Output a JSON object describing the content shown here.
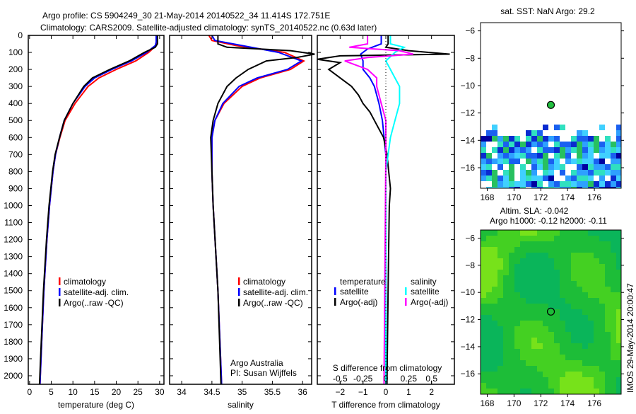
{
  "title_line1": "Argo profile: CS 5904249_30 21-May-2014 20140522_34 11.414S 172.751E",
  "title_line2": "Climatology: CARS2009. Satellite-adjusted climatology: synTS_20140522.nc (0.63d later)",
  "chart_data": [
    {
      "type": "line",
      "id": "temperature",
      "xlabel": "temperature (deg C)",
      "xlim": [
        -0.3,
        31
      ],
      "ylim": [
        2050,
        0
      ],
      "xticks": [
        0,
        5,
        10,
        15,
        20,
        25,
        30
      ],
      "yticks": [
        0,
        100,
        200,
        300,
        400,
        500,
        600,
        700,
        800,
        900,
        1000,
        1100,
        1200,
        1300,
        1400,
        1500,
        1600,
        1700,
        1800,
        1900,
        2000
      ],
      "legend": [
        "climatology",
        "satellite-adj. clim.",
        "Argo(..raw -QC)"
      ],
      "legend_placement": "lower-center",
      "series": [
        {
          "name": "climatology",
          "color": "#ff0000",
          "points": [
            [
              0,
              29.4
            ],
            [
              40,
              29.4
            ],
            [
              60,
              29.2
            ],
            [
              100,
              27.5
            ],
            [
              150,
              24.5
            ],
            [
              200,
              20
            ],
            [
              250,
              16
            ],
            [
              300,
              13.5
            ],
            [
              400,
              10.5
            ],
            [
              500,
              8.2
            ],
            [
              600,
              7
            ],
            [
              700,
              6
            ],
            [
              800,
              5.4
            ],
            [
              1000,
              4.6
            ],
            [
              1200,
              4
            ],
            [
              1500,
              3.3
            ],
            [
              1800,
              2.8
            ],
            [
              2050,
              2.4
            ]
          ]
        },
        {
          "name": "satellite-adj. clim.",
          "color": "#0000ff",
          "points": [
            [
              0,
              29.2
            ],
            [
              40,
              29.2
            ],
            [
              60,
              29
            ],
            [
              100,
              27
            ],
            [
              150,
              23.5
            ],
            [
              200,
              19
            ],
            [
              250,
              15
            ],
            [
              300,
              12.8
            ],
            [
              400,
              10
            ],
            [
              500,
              8
            ],
            [
              600,
              6.9
            ],
            [
              700,
              6
            ],
            [
              800,
              5.4
            ],
            [
              1000,
              4.6
            ],
            [
              1200,
              4
            ],
            [
              1500,
              3.3
            ],
            [
              1800,
              2.8
            ],
            [
              2050,
              2.4
            ]
          ]
        },
        {
          "name": "Argo(..raw -QC)",
          "color": "#000000",
          "points": [
            [
              0,
              29.5
            ],
            [
              50,
              29.5
            ],
            [
              70,
              29
            ],
            [
              100,
              26.5
            ],
            [
              150,
              23
            ],
            [
              200,
              18.5
            ],
            [
              250,
              14.5
            ],
            [
              300,
              12.5
            ],
            [
              400,
              10
            ],
            [
              500,
              8
            ],
            [
              600,
              6.9
            ],
            [
              700,
              5.9
            ],
            [
              800,
              5.3
            ],
            [
              1000,
              4.5
            ],
            [
              1200,
              3.9
            ],
            [
              1500,
              3.2
            ],
            [
              1800,
              2.7
            ],
            [
              2050,
              2.3
            ]
          ]
        }
      ]
    },
    {
      "type": "line",
      "id": "salinity",
      "xlabel": "salinity",
      "xlim": [
        33.8,
        36.15
      ],
      "ylim": [
        2050,
        0
      ],
      "xticks": [
        34,
        34.5,
        35,
        35.5,
        36
      ],
      "legend": [
        "climatology",
        "satellite-adj. clim.",
        "Argo(..raw -QC)"
      ],
      "legend_placement": "lower-right",
      "annotation": [
        "Argo Australia",
        "PI: Susan Wijffels"
      ],
      "series": [
        {
          "name": "climatology",
          "color": "#ff0000",
          "points": [
            [
              0,
              34.45
            ],
            [
              30,
              34.5
            ],
            [
              60,
              34.9
            ],
            [
              100,
              35.7
            ],
            [
              150,
              36.02
            ],
            [
              200,
              35.8
            ],
            [
              250,
              35.3
            ],
            [
              300,
              35
            ],
            [
              400,
              34.7
            ],
            [
              500,
              34.55
            ],
            [
              600,
              34.5
            ],
            [
              800,
              34.5
            ],
            [
              1000,
              34.52
            ],
            [
              1500,
              34.6
            ],
            [
              2050,
              34.66
            ]
          ]
        },
        {
          "name": "satellite-adj. clim.",
          "color": "#0000ff",
          "points": [
            [
              0,
              34.5
            ],
            [
              30,
              34.55
            ],
            [
              60,
              35
            ],
            [
              100,
              35.6
            ],
            [
              150,
              35.98
            ],
            [
              200,
              35.75
            ],
            [
              250,
              35.25
            ],
            [
              300,
              34.95
            ],
            [
              400,
              34.68
            ],
            [
              500,
              34.55
            ],
            [
              600,
              34.5
            ],
            [
              800,
              34.5
            ],
            [
              1000,
              34.52
            ],
            [
              1500,
              34.6
            ],
            [
              2050,
              34.66
            ]
          ]
        },
        {
          "name": "Argo(..raw -QC)",
          "color": "#000000",
          "points": [
            [
              0,
              34.6
            ],
            [
              50,
              34.6
            ],
            [
              70,
              34.75
            ],
            [
              90,
              35.8
            ],
            [
              110,
              36.2
            ],
            [
              130,
              35.9
            ],
            [
              150,
              35.4
            ],
            [
              200,
              35.1
            ],
            [
              250,
              34.9
            ],
            [
              300,
              34.75
            ],
            [
              400,
              34.6
            ],
            [
              500,
              34.52
            ],
            [
              600,
              34.48
            ],
            [
              800,
              34.5
            ],
            [
              1000,
              34.52
            ],
            [
              1500,
              34.6
            ],
            [
              2050,
              34.65
            ]
          ]
        }
      ]
    },
    {
      "type": "line",
      "id": "difference",
      "xlabel": "T difference from climatology",
      "xlabel2": "S difference from climatology",
      "xlim": [
        -3,
        3
      ],
      "x2lim": [
        -0.75,
        0.75
      ],
      "xticks": [
        -2,
        -1,
        0,
        1,
        2
      ],
      "x2ticks": [
        -0.5,
        -0.25,
        0,
        0.25,
        0.5
      ],
      "x2ticklabels": [
        "-0.5",
        "-0.25",
        "0",
        "0.25",
        "0.5"
      ],
      "ylim": [
        2050,
        0
      ],
      "legend_temperature": {
        "title": "temperature",
        "items": [
          "satellite",
          "Argo(-adj)"
        ]
      },
      "legend_salinity": {
        "title": "salinity",
        "items": [
          "satellite",
          "Argo(-adj)"
        ]
      },
      "series": [
        {
          "name": "temperature satellite",
          "axis": "T",
          "color": "#0000ff",
          "points": [
            [
              0,
              -0.2
            ],
            [
              50,
              -0.2
            ],
            [
              80,
              -0.8
            ],
            [
              110,
              -1.1
            ],
            [
              150,
              -1
            ],
            [
              200,
              -1
            ],
            [
              250,
              -0.7
            ],
            [
              300,
              -0.5
            ],
            [
              400,
              -0.3
            ],
            [
              500,
              -0.15
            ],
            [
              700,
              0
            ],
            [
              2050,
              0
            ]
          ]
        },
        {
          "name": "temperature Argo(-adj)",
          "axis": "T",
          "color": "#000000",
          "points": [
            [
              0,
              0.1
            ],
            [
              50,
              0.1
            ],
            [
              70,
              0
            ],
            [
              90,
              1
            ],
            [
              110,
              2.8
            ],
            [
              120,
              -2
            ],
            [
              140,
              -3
            ],
            [
              160,
              -2
            ],
            [
              200,
              -2.5
            ],
            [
              250,
              -2
            ],
            [
              300,
              -1.5
            ],
            [
              350,
              -1.2
            ],
            [
              400,
              -1
            ],
            [
              450,
              -0.7
            ],
            [
              500,
              -0.5
            ],
            [
              550,
              -0.3
            ],
            [
              600,
              -0.1
            ],
            [
              700,
              0.05
            ],
            [
              900,
              0.2
            ],
            [
              1000,
              0.15
            ],
            [
              1500,
              0.1
            ],
            [
              2050,
              0.05
            ]
          ]
        },
        {
          "name": "salinity satellite",
          "axis": "S",
          "color": "#00ffff",
          "points": [
            [
              0,
              0.05
            ],
            [
              50,
              0.05
            ],
            [
              70,
              0.2
            ],
            [
              100,
              0.1
            ],
            [
              150,
              0
            ],
            [
              200,
              0.05
            ],
            [
              250,
              0.1
            ],
            [
              300,
              0.15
            ],
            [
              400,
              0.15
            ],
            [
              500,
              0.1
            ],
            [
              600,
              0.05
            ],
            [
              800,
              0
            ],
            [
              2050,
              0
            ]
          ]
        },
        {
          "name": "salinity Argo(-adj)",
          "axis": "S",
          "color": "#ff00ff",
          "points": [
            [
              0,
              -0.2
            ],
            [
              50,
              -0.2
            ],
            [
              70,
              -0.4
            ],
            [
              90,
              0.15
            ],
            [
              110,
              0.3
            ],
            [
              130,
              -0.2
            ],
            [
              150,
              -0.45
            ],
            [
              200,
              -0.2
            ],
            [
              250,
              -0.1
            ],
            [
              300,
              -0.1
            ],
            [
              400,
              -0.05
            ],
            [
              500,
              0
            ],
            [
              700,
              0
            ],
            [
              2050,
              -0.02
            ]
          ]
        }
      ]
    },
    {
      "type": "heatmap",
      "id": "sst-map",
      "title": "sat. SST: NaN Argo: 29.2",
      "xlim": [
        167.5,
        178
      ],
      "ylim": [
        -17.5,
        -5.4
      ],
      "xticks": [
        168,
        170,
        172,
        174,
        176
      ],
      "yticks": [
        -6,
        -8,
        -10,
        -12,
        -14,
        -16
      ],
      "argo_position": [
        172.751,
        -11.414
      ]
    },
    {
      "type": "heatmap",
      "id": "sla-map",
      "title_line1": "Altim. SLA: -0.042",
      "title_line2": "Argo h1000: -0.12 h2000: -0.11",
      "xlim": [
        167.5,
        178
      ],
      "ylim": [
        -17.5,
        -5.4
      ],
      "xticks": [
        168,
        170,
        172,
        174,
        176
      ],
      "yticks": [
        -6,
        -8,
        -10,
        -12,
        -14,
        -16
      ],
      "argo_position": [
        172.751,
        -11.414
      ],
      "side_label": "IMOS 29-May-2014 20:00:47"
    }
  ]
}
